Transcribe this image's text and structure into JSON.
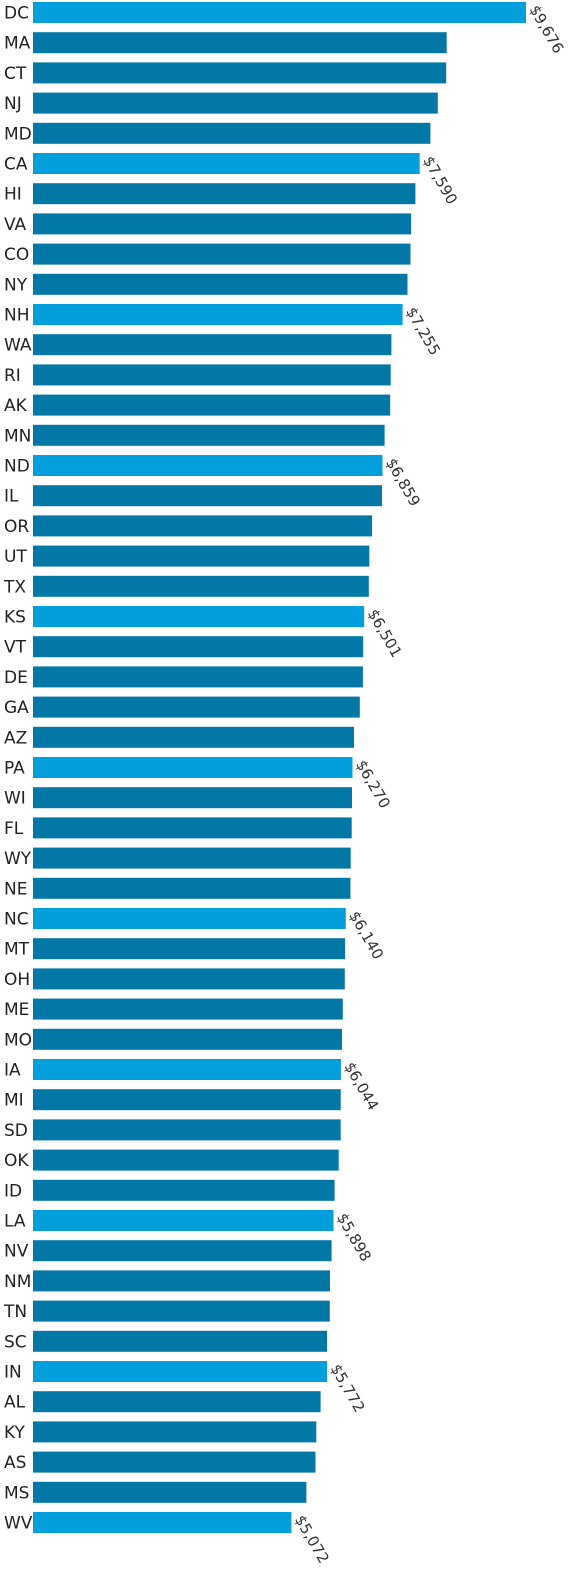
{
  "chart_data": {
    "type": "bar",
    "orientation": "horizontal",
    "title": "",
    "xlabel": "",
    "ylabel": "",
    "grid": false,
    "legend": "none",
    "xlim": [
      0,
      9676
    ],
    "colors": {
      "bar": "#0378a6",
      "highlight": "#039fdc"
    },
    "categories": [
      "DC",
      "MA",
      "CT",
      "NJ",
      "MD",
      "CA",
      "HI",
      "VA",
      "CO",
      "NY",
      "NH",
      "WA",
      "RI",
      "AK",
      "MN",
      "ND",
      "IL",
      "OR",
      "UT",
      "TX",
      "KS",
      "VT",
      "DE",
      "GA",
      "AZ",
      "PA",
      "WI",
      "FL",
      "WY",
      "NE",
      "NC",
      "MT",
      "OH",
      "ME",
      "MO",
      "IA",
      "MI",
      "SD",
      "OK",
      "ID",
      "LA",
      "NV",
      "NM",
      "TN",
      "SC",
      "IN",
      "AL",
      "KY",
      "AS",
      "MS",
      "WV"
    ],
    "values": [
      9676,
      8120,
      8110,
      7945,
      7800,
      7590,
      7505,
      7420,
      7410,
      7350,
      7255,
      7035,
      7020,
      7010,
      6900,
      6859,
      6850,
      6655,
      6600,
      6590,
      6501,
      6480,
      6475,
      6415,
      6300,
      6270,
      6260,
      6255,
      6235,
      6230,
      6140,
      6125,
      6120,
      6080,
      6065,
      6044,
      6040,
      6040,
      6000,
      5920,
      5898,
      5860,
      5830,
      5825,
      5770,
      5772,
      5645,
      5560,
      5545,
      5365,
      5072
    ],
    "highlighted": [
      true,
      false,
      false,
      false,
      false,
      true,
      false,
      false,
      false,
      false,
      true,
      false,
      false,
      false,
      false,
      true,
      false,
      false,
      false,
      false,
      true,
      false,
      false,
      false,
      false,
      true,
      false,
      false,
      false,
      false,
      true,
      false,
      false,
      false,
      false,
      true,
      false,
      false,
      false,
      false,
      true,
      false,
      false,
      false,
      false,
      true,
      false,
      false,
      false,
      false,
      true
    ],
    "data_labels": [
      "$9,676",
      "",
      "",
      "",
      "",
      "$7,590",
      "",
      "",
      "",
      "",
      "$7,255",
      "",
      "",
      "",
      "",
      "$6,859",
      "",
      "",
      "",
      "",
      "$6,501",
      "",
      "",
      "",
      "",
      "$6,270",
      "",
      "",
      "",
      "",
      "$6,140",
      "",
      "",
      "",
      "",
      "$6,044",
      "",
      "",
      "",
      "",
      "$5,898",
      "",
      "",
      "",
      "",
      "$5,772",
      "",
      "",
      "",
      "",
      "$5,072"
    ]
  }
}
